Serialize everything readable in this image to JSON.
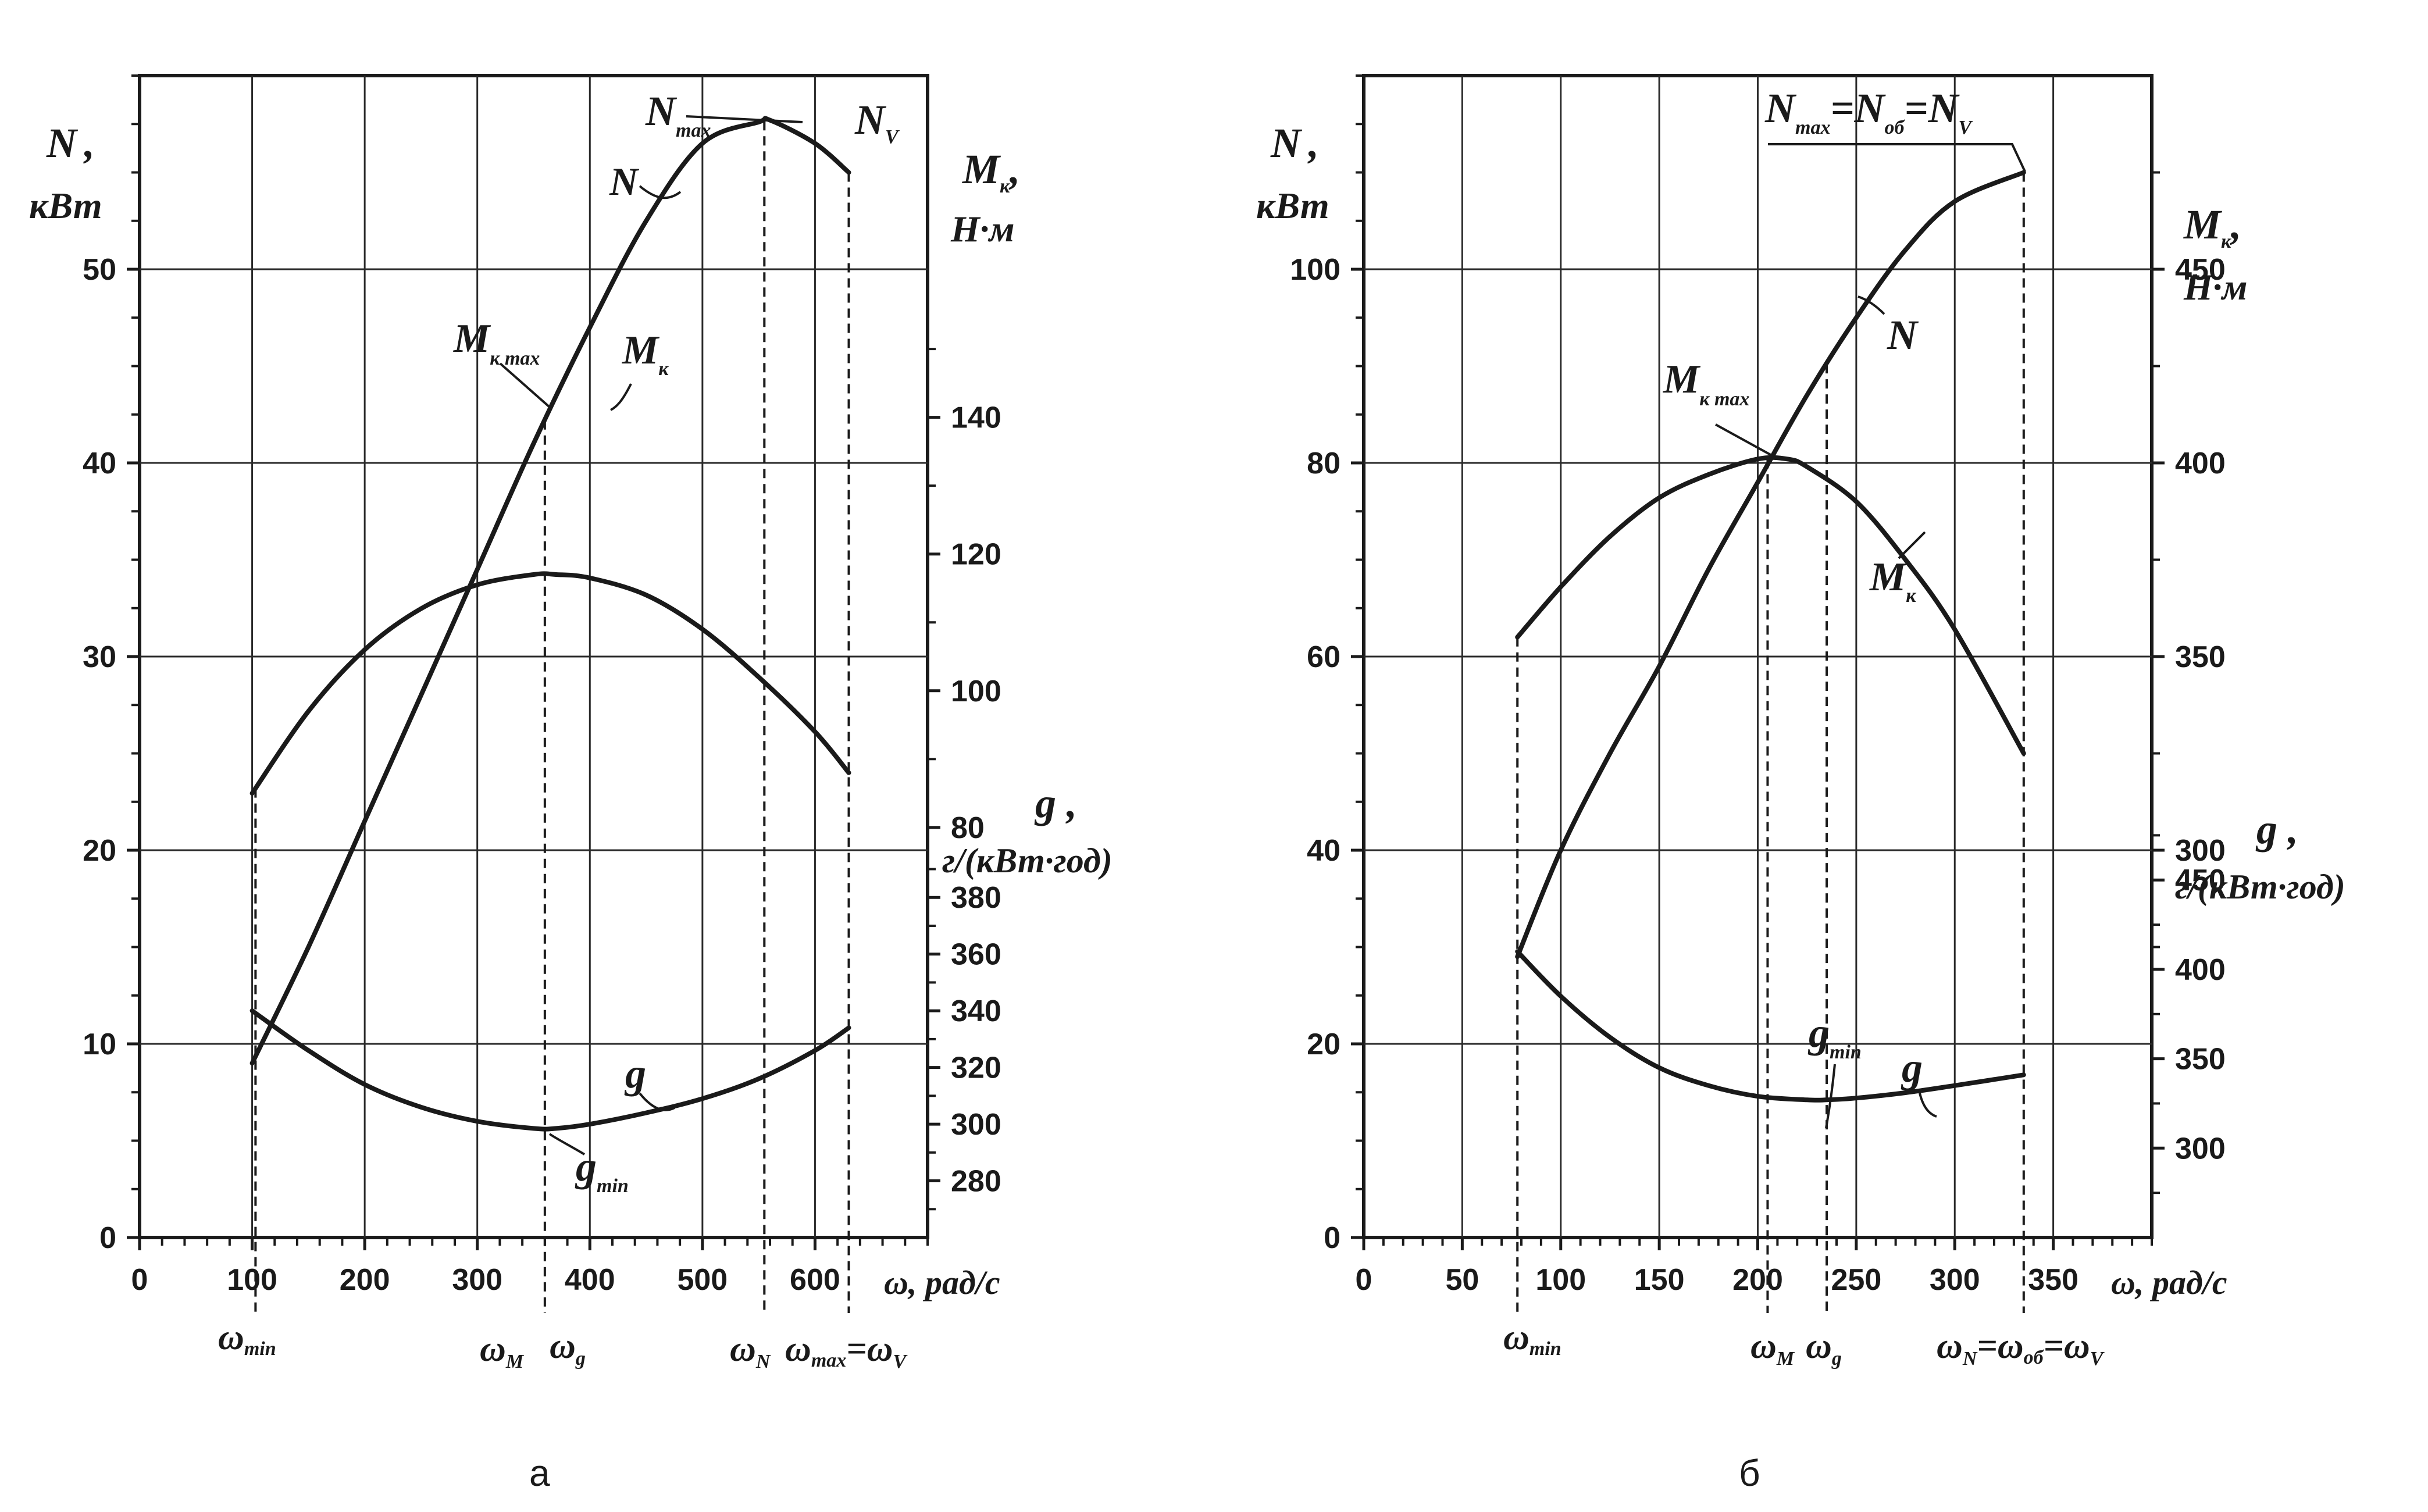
{
  "panels": [
    {
      "caption": "а",
      "x_tick_labels": [
        "0",
        "100",
        "200",
        "300",
        "400",
        "500",
        "600"
      ],
      "x_axis_label": "ω, рад/с",
      "n_axis": {
        "name": "N",
        "unit": "кВт",
        "tick_labels": [
          "0",
          "10",
          "20",
          "30",
          "40",
          "50"
        ]
      },
      "m_axis": {
        "name": "M",
        "name_sub": "к",
        "unit": "Н·м",
        "tick_labels": [
          "80",
          "100",
          "120",
          "140"
        ]
      },
      "g_axis": {
        "name": "g",
        "unit": "г/(кВт·год)",
        "tick_labels": [
          "280",
          "300",
          "320",
          "340",
          "360",
          "380"
        ]
      },
      "omega_labels": {
        "min": {
          "base": "ω",
          "sub": "min"
        },
        "M": {
          "base": "ω",
          "sub": "M"
        },
        "g": {
          "base": "ω",
          "sub": "g"
        },
        "N": {
          "base": "ω",
          "sub": "N"
        },
        "max_base": "ω",
        "max_sub": "max",
        "eq": "=",
        "V_base": "ω",
        "V_sub": "V"
      },
      "curve_labels": {
        "N": "N",
        "Nmax": {
          "base": "N",
          "sub": "max"
        },
        "NV": {
          "base": "N",
          "sub": "V"
        },
        "Mk": {
          "base": "M",
          "sub": "к"
        },
        "Mkmax": {
          "base": "M",
          "sub": "к max"
        },
        "g": "g",
        "gmin": {
          "base": "g",
          "sub": "min"
        }
      }
    },
    {
      "caption": "б",
      "x_tick_labels": [
        "0",
        "50",
        "100",
        "150",
        "200",
        "250",
        "300",
        "350"
      ],
      "x_axis_label": "ω, рад/с",
      "n_axis": {
        "name": "N",
        "unit": "кВт",
        "tick_labels": [
          "0",
          "20",
          "40",
          "60",
          "80",
          "100"
        ]
      },
      "m_axis": {
        "name": "M",
        "name_sub": "к",
        "unit": "Н·м",
        "tick_labels": [
          "300",
          "350",
          "400",
          "450"
        ]
      },
      "g_axis": {
        "name": "g",
        "unit": "г/(кВт·год)",
        "tick_labels": [
          "300",
          "350",
          "400",
          "450"
        ]
      },
      "omega_labels": {
        "min": {
          "base": "ω",
          "sub": "min"
        },
        "M": {
          "base": "ω",
          "sub": "M"
        },
        "g": {
          "base": "ω",
          "sub": "g"
        },
        "N_base": "ω",
        "N_sub": "N",
        "eq1": "=",
        "ob_base": "ω",
        "ob_sub": "об",
        "eq2": "=",
        "V_base": "ω",
        "V_sub": "V"
      },
      "curve_labels": {
        "N": "N",
        "Mk": {
          "base": "M",
          "sub": "к"
        },
        "Mkmax": {
          "base": "M",
          "sub": "к max"
        },
        "g": "g",
        "gmin": {
          "base": "g",
          "sub": "min"
        },
        "Nmax_eq": {
          "n1": "N",
          "s1": "max",
          "eq1": "=",
          "n2": "N",
          "s2": "об",
          "eq2": "=",
          "n3": "N",
          "s3": "V"
        }
      }
    }
  ],
  "chart_data": [
    {
      "type": "line",
      "x_unit": "rad/s",
      "xlim": [
        0,
        700
      ],
      "n_ylim": [
        0,
        60
      ],
      "m_ylim": [
        20,
        190
      ],
      "g_ylim": [
        260,
        670
      ],
      "series": [
        {
          "name": "N",
          "axis": "N",
          "x": [
            100,
            150,
            200,
            250,
            300,
            350,
            400,
            450,
            500,
            550,
            560,
            600,
            630
          ],
          "values": [
            9,
            15,
            21.5,
            28,
            34.5,
            41,
            47,
            52.5,
            56.5,
            57.6,
            57.7,
            56.5,
            55
          ]
        },
        {
          "name": "Mк",
          "axis": "M",
          "x": [
            100,
            150,
            200,
            250,
            300,
            350,
            370,
            400,
            450,
            500,
            550,
            600,
            630
          ],
          "values": [
            85,
            97,
            106,
            112,
            115.5,
            117,
            117,
            116.5,
            114,
            109,
            102,
            94,
            88
          ]
        },
        {
          "name": "g",
          "axis": "g",
          "x": [
            100,
            150,
            200,
            250,
            300,
            350,
            370,
            400,
            450,
            500,
            550,
            600,
            630
          ],
          "values": [
            340,
            326,
            314,
            306,
            301,
            298.5,
            298.5,
            300,
            304,
            309,
            316,
            326,
            334
          ]
        }
      ],
      "markers": {
        "omega_min": 103,
        "omega_M": 360,
        "omega_g": 360,
        "omega_N": 555,
        "omega_V": 630
      }
    },
    {
      "type": "line",
      "x_unit": "rad/s",
      "xlim": [
        0,
        400
      ],
      "n_ylim": [
        0,
        120
      ],
      "m_ylim": [
        200,
        500
      ],
      "g_ylim": [
        250,
        900
      ],
      "series": [
        {
          "name": "N",
          "axis": "N",
          "x": [
            78,
            100,
            125,
            150,
            175,
            200,
            225,
            250,
            275,
            300,
            335
          ],
          "values": [
            29,
            40,
            50,
            59,
            69,
            78,
            87,
            95,
            102,
            107,
            110
          ]
        },
        {
          "name": "Mк",
          "axis": "M",
          "x": [
            78,
            100,
            125,
            150,
            175,
            200,
            215,
            225,
            250,
            275,
            300,
            335
          ],
          "values": [
            355,
            368,
            381,
            391,
            397,
            401,
            401,
            399,
            390,
            375,
            357,
            325
          ]
        },
        {
          "name": "g",
          "axis": "g",
          "x": [
            78,
            100,
            125,
            150,
            175,
            200,
            225,
            235,
            250,
            275,
            300,
            335
          ],
          "values": [
            410,
            385,
            362,
            345,
            335,
            329,
            327,
            327,
            328,
            331,
            335,
            341
          ]
        }
      ],
      "markers": {
        "omega_min": 78,
        "omega_M": 205,
        "omega_g": 235,
        "omega_N": 335,
        "omega_ob": 335,
        "omega_V": 335
      }
    }
  ]
}
